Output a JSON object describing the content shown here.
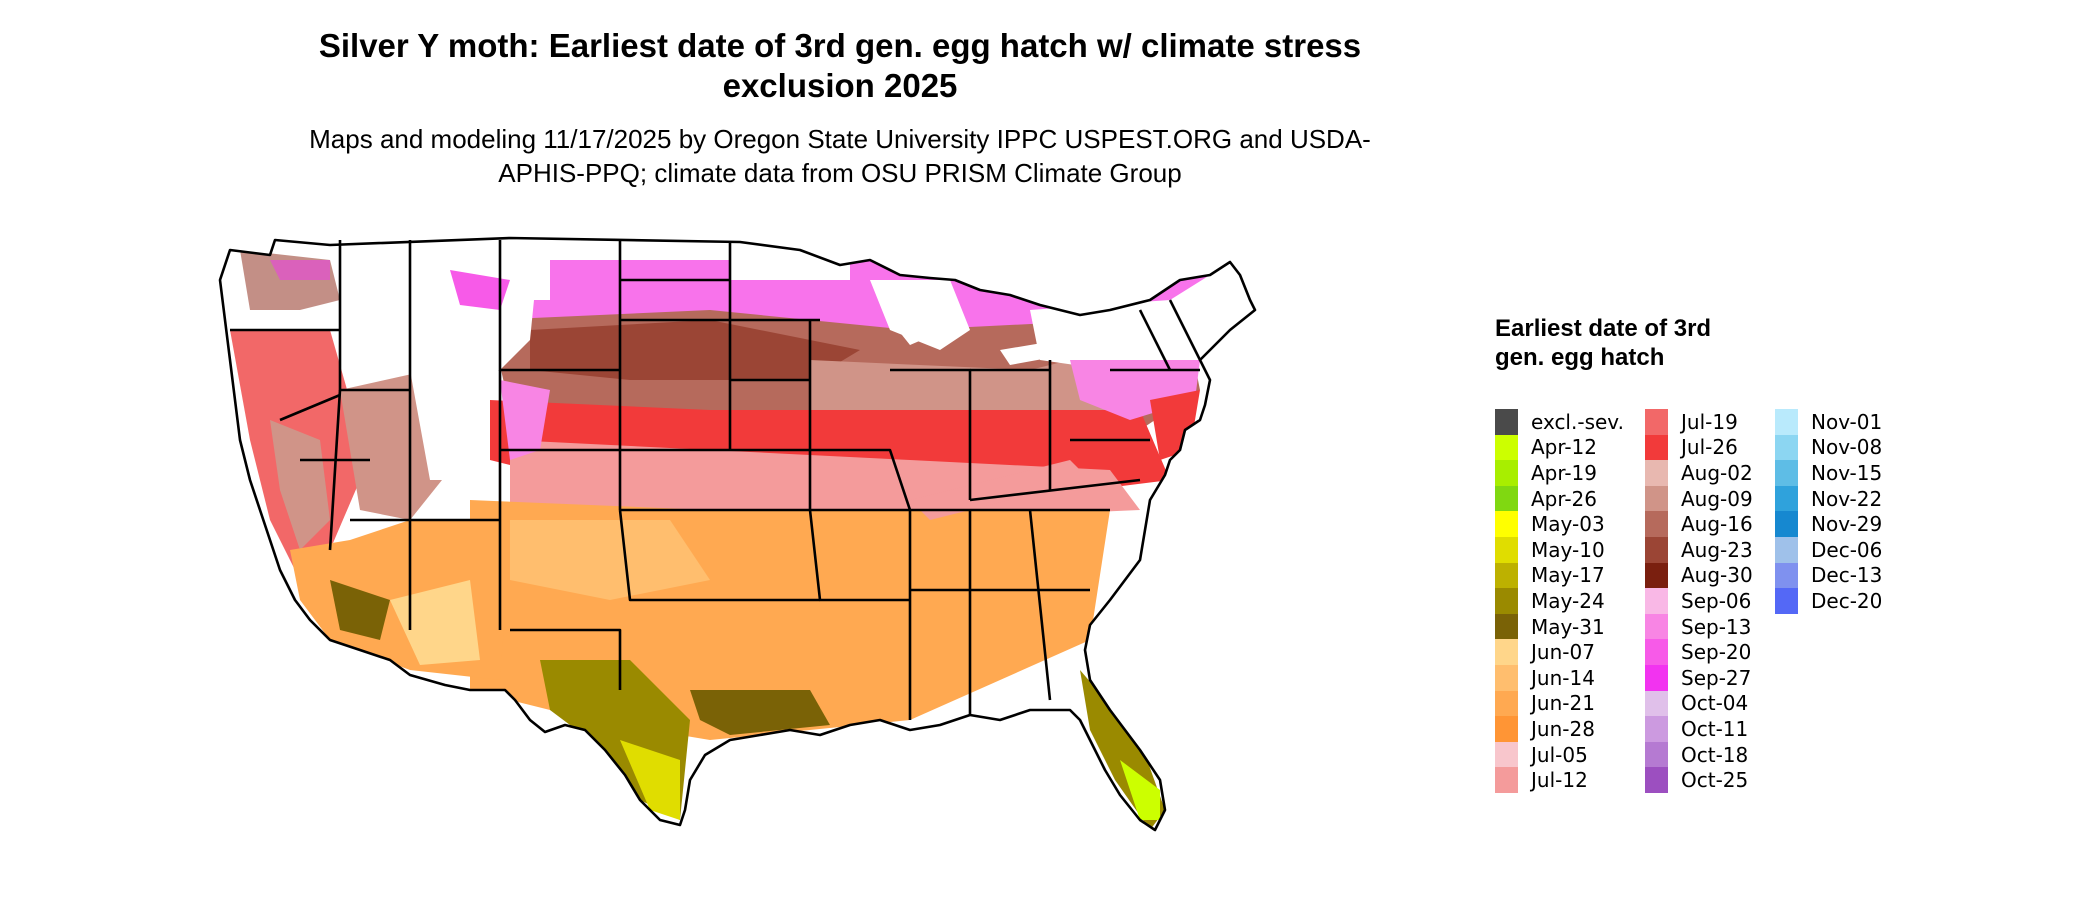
{
  "title": "Silver Y moth: Earliest date of 3rd gen. egg hatch w/ climate stress exclusion 2025",
  "subtitle": "Maps and modeling 11/17/2025 by Oregon State University IPPC USPEST.ORG and USDA-APHIS-PPQ; climate data from OSU PRISM Climate Group",
  "legend": {
    "title": "Earliest date of 3rd gen. egg hatch",
    "items": [
      {
        "label": "excl.-sev.",
        "color": "#4a4a4a"
      },
      {
        "label": "Apr-12",
        "color": "#ccff00"
      },
      {
        "label": "Apr-19",
        "color": "#a8ee00"
      },
      {
        "label": "Apr-26",
        "color": "#80d811"
      },
      {
        "label": "May-03",
        "color": "#ffff00"
      },
      {
        "label": "May-10",
        "color": "#e0dd00"
      },
      {
        "label": "May-17",
        "color": "#bdb100"
      },
      {
        "label": "May-24",
        "color": "#9a8a00"
      },
      {
        "label": "May-31",
        "color": "#7a6206"
      },
      {
        "label": "Jun-07",
        "color": "#ffd68a"
      },
      {
        "label": "Jun-14",
        "color": "#ffbe6e"
      },
      {
        "label": "Jun-21",
        "color": "#ffa951"
      },
      {
        "label": "Jun-28",
        "color": "#ff9535"
      },
      {
        "label": "Jul-05",
        "color": "#f8c6cc"
      },
      {
        "label": "Jul-12",
        "color": "#f49b9b"
      },
      {
        "label": "Jul-19",
        "color": "#f26868"
      },
      {
        "label": "Jul-26",
        "color": "#f23a3a"
      },
      {
        "label": "Aug-02",
        "color": "#e8b8b0"
      },
      {
        "label": "Aug-09",
        "color": "#d09488"
      },
      {
        "label": "Aug-16",
        "color": "#b66a5c"
      },
      {
        "label": "Aug-23",
        "color": "#9b4535"
      },
      {
        "label": "Aug-30",
        "color": "#7a1f0f"
      },
      {
        "label": "Sep-06",
        "color": "#f9b8e6"
      },
      {
        "label": "Sep-13",
        "color": "#f885e4"
      },
      {
        "label": "Sep-20",
        "color": "#f75ae8"
      },
      {
        "label": "Sep-27",
        "color": "#f233f0"
      },
      {
        "label": "Oct-04",
        "color": "#e0c0ea"
      },
      {
        "label": "Oct-11",
        "color": "#cc9ae0"
      },
      {
        "label": "Oct-18",
        "color": "#b57ad2"
      },
      {
        "label": "Oct-25",
        "color": "#9c4fc0"
      },
      {
        "label": "Nov-01",
        "color": "#b9eafc"
      },
      {
        "label": "Nov-08",
        "color": "#8cd6f2"
      },
      {
        "label": "Nov-15",
        "color": "#5ebde6"
      },
      {
        "label": "Nov-22",
        "color": "#2fa2dc"
      },
      {
        "label": "Nov-29",
        "color": "#1688d0"
      },
      {
        "label": "Dec-06",
        "color": "#9fc1ea"
      },
      {
        "label": "Dec-13",
        "color": "#7f91ef"
      },
      {
        "label": "Dec-20",
        "color": "#5468f6"
      }
    ]
  }
}
